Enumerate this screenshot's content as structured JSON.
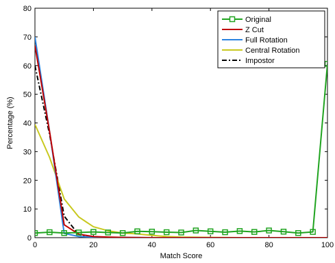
{
  "chart_data": {
    "type": "line",
    "title": "",
    "xlabel": "Match Score",
    "ylabel": "Percentage (%)",
    "xlim": [
      0,
      100
    ],
    "ylim": [
      0,
      80
    ],
    "xticks": [
      "0",
      "20",
      "40",
      "60",
      "80",
      "100"
    ],
    "yticks": [
      "0",
      "10",
      "20",
      "30",
      "40",
      "50",
      "60",
      "70",
      "80"
    ],
    "grid": false,
    "legend_position": "top-right",
    "series": [
      {
        "name": "Original",
        "color": "#1fa31f",
        "dash": "solid",
        "marker": "square",
        "x": [
          0,
          5,
          10,
          15,
          20,
          25,
          30,
          35,
          40,
          45,
          50,
          55,
          60,
          65,
          70,
          75,
          80,
          85,
          90,
          95,
          100
        ],
        "y": [
          1.6,
          1.9,
          1.6,
          1.8,
          2.0,
          1.8,
          1.6,
          2.2,
          2.1,
          1.9,
          1.8,
          2.5,
          2.2,
          1.9,
          2.3,
          2.0,
          2.5,
          2.1,
          1.6,
          2.0,
          60.6
        ]
      },
      {
        "name": "Z Cut",
        "color": "#c00000",
        "dash": "solid",
        "marker": "none",
        "x": [
          0,
          5,
          10,
          15,
          20,
          25,
          30,
          40,
          50,
          60,
          70,
          80,
          90,
          100
        ],
        "y": [
          67,
          37,
          4.5,
          1.2,
          0.4,
          0.2,
          0.1,
          0,
          0,
          0,
          0,
          0,
          0,
          0
        ]
      },
      {
        "name": "Full Rotation",
        "color": "#2a83e0",
        "dash": "solid",
        "marker": "none",
        "x": [
          0,
          5,
          10,
          15,
          20,
          25,
          30,
          40,
          50,
          60,
          70,
          80,
          90,
          100
        ],
        "y": [
          70,
          37,
          1.5,
          0.4,
          0.2,
          0.1,
          0.1,
          0,
          0,
          0,
          0,
          0,
          0,
          0
        ]
      },
      {
        "name": "Central Rotation",
        "color": "#c8c81e",
        "dash": "solid",
        "marker": "none",
        "x": [
          0,
          5,
          10,
          15,
          20,
          25,
          30,
          35,
          40,
          45,
          50,
          60,
          70,
          80,
          90,
          100
        ],
        "y": [
          39.5,
          28,
          13.5,
          7.2,
          3.8,
          2.4,
          1.6,
          1.3,
          0.8,
          0.4,
          0.2,
          0.1,
          0,
          0,
          0,
          0
        ]
      },
      {
        "name": "Impostor",
        "color": "#000000",
        "dash": "dashdot",
        "marker": "none",
        "x": [
          0,
          5,
          10,
          15,
          20,
          25,
          30,
          40,
          50,
          60,
          70,
          80,
          90,
          100
        ],
        "y": [
          60,
          36,
          7.5,
          1.0,
          0.3,
          0.1,
          0,
          0,
          0,
          0,
          0,
          0,
          0,
          0
        ]
      }
    ]
  }
}
